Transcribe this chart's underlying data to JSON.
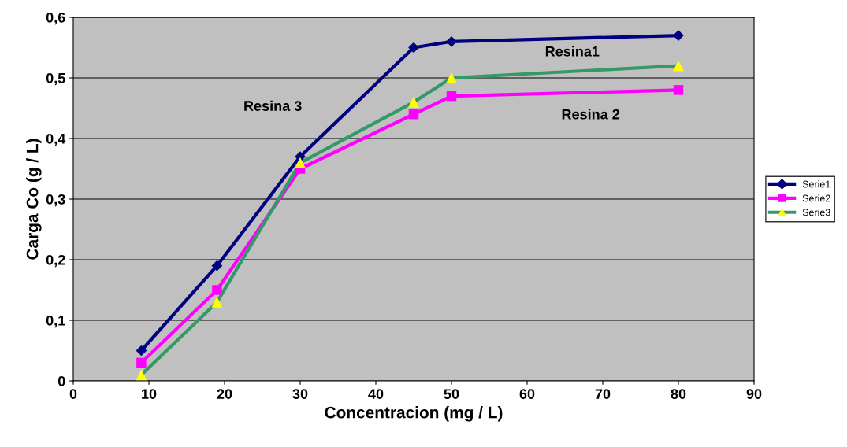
{
  "chart_data": {
    "type": "line",
    "xlabel": "Concentracion (mg / L)",
    "ylabel": "Carga Co (g / L)",
    "xlim": [
      0,
      90
    ],
    "xticks": [
      0,
      10,
      20,
      30,
      40,
      50,
      60,
      70,
      80,
      90
    ],
    "ylim": [
      0,
      0.6
    ],
    "yticks": [
      {
        "value": 0,
        "label": "0"
      },
      {
        "value": 0.1,
        "label": "0,1"
      },
      {
        "value": 0.2,
        "label": "0,2"
      },
      {
        "value": 0.3,
        "label": "0,3"
      },
      {
        "value": 0.4,
        "label": "0,4"
      },
      {
        "value": 0.5,
        "label": "0,5"
      },
      {
        "value": 0.6,
        "label": "0,6"
      }
    ],
    "grid": "y",
    "legend": "right",
    "x": [
      9,
      19,
      30,
      45,
      50,
      80
    ],
    "series": [
      {
        "name": "Serie1",
        "color": "#000080",
        "marker": "diamond",
        "values": [
          0.05,
          0.19,
          0.37,
          0.55,
          0.56,
          0.57
        ]
      },
      {
        "name": "Serie2",
        "color": "#ff00ff",
        "marker": "square",
        "values": [
          0.03,
          0.15,
          0.35,
          0.44,
          0.47,
          0.48
        ]
      },
      {
        "name": "Serie3",
        "color": "#339966",
        "marker": "triangle",
        "colors": [
          "#ffff00",
          "#ffff00",
          "#ffff00",
          "#ffff00",
          "#ffff00",
          "#ffff00"
        ],
        "values": [
          0.01,
          0.13,
          0.36,
          0.46,
          0.5,
          0.52
        ]
      }
    ],
    "annotations": [
      "Resina1",
      "Resina 3",
      "Resina 2"
    ]
  }
}
